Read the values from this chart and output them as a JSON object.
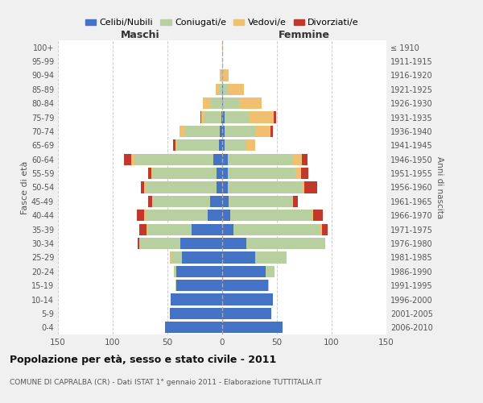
{
  "age_groups_bottom_to_top": [
    "0-4",
    "5-9",
    "10-14",
    "15-19",
    "20-24",
    "25-29",
    "30-34",
    "35-39",
    "40-44",
    "45-49",
    "50-54",
    "55-59",
    "60-64",
    "65-69",
    "70-74",
    "75-79",
    "80-84",
    "85-89",
    "90-94",
    "95-99",
    "100+"
  ],
  "birth_years_bottom_to_top": [
    "2006-2010",
    "2001-2005",
    "1996-2000",
    "1991-1995",
    "1986-1990",
    "1981-1985",
    "1976-1980",
    "1971-1975",
    "1966-1970",
    "1961-1965",
    "1956-1960",
    "1951-1955",
    "1946-1950",
    "1941-1945",
    "1936-1940",
    "1931-1935",
    "1926-1930",
    "1921-1925",
    "1916-1920",
    "1911-1915",
    "≤ 1910"
  ],
  "male_celibi": [
    52,
    48,
    47,
    42,
    42,
    37,
    38,
    28,
    13,
    11,
    5,
    5,
    8,
    3,
    2,
    1,
    0,
    0,
    0,
    0,
    0
  ],
  "male_coniugati": [
    0,
    0,
    0,
    1,
    2,
    9,
    38,
    40,
    57,
    52,
    65,
    58,
    72,
    38,
    32,
    15,
    10,
    3,
    1,
    0,
    0
  ],
  "male_vedovi": [
    0,
    0,
    0,
    0,
    0,
    2,
    0,
    1,
    1,
    1,
    1,
    2,
    3,
    2,
    5,
    3,
    8,
    3,
    1,
    0,
    0
  ],
  "male_divorziati": [
    0,
    0,
    0,
    0,
    0,
    0,
    1,
    7,
    7,
    4,
    3,
    3,
    7,
    2,
    0,
    1,
    0,
    0,
    0,
    0,
    0
  ],
  "fem_nubili": [
    55,
    45,
    46,
    42,
    40,
    30,
    22,
    10,
    7,
    6,
    5,
    5,
    5,
    2,
    2,
    2,
    1,
    1,
    0,
    0,
    0
  ],
  "fem_coniugate": [
    0,
    0,
    0,
    1,
    8,
    28,
    72,
    80,
    75,
    58,
    68,
    62,
    60,
    20,
    28,
    22,
    15,
    5,
    1,
    0,
    0
  ],
  "fem_vedove": [
    0,
    0,
    0,
    0,
    0,
    1,
    0,
    1,
    1,
    1,
    2,
    5,
    8,
    8,
    14,
    23,
    20,
    14,
    5,
    0,
    1
  ],
  "fem_divorziate": [
    0,
    0,
    0,
    0,
    0,
    0,
    0,
    5,
    9,
    4,
    12,
    7,
    5,
    0,
    2,
    2,
    0,
    0,
    0,
    0,
    0
  ],
  "color_celibi": "#4472c4",
  "color_coniugati": "#b8cfa0",
  "color_vedovi": "#f0c070",
  "color_divorziati": "#c0392b",
  "legend_labels": [
    "Celibi/Nubili",
    "Coniugati/e",
    "Vedovi/e",
    "Divorziati/e"
  ],
  "title": "Popolazione per età, sesso e stato civile - 2011",
  "subtitle": "COMUNE DI CAPRALBA (CR) - Dati ISTAT 1° gennaio 2011 - Elaborazione TUTTITALIA.IT",
  "label_maschi": "Maschi",
  "label_femmine": "Femmine",
  "ylabel_left": "Fasce di età",
  "ylabel_right": "Anni di nascita",
  "xlim": 150,
  "bg_color": "#f0f0f0",
  "plot_bg": "#ffffff"
}
